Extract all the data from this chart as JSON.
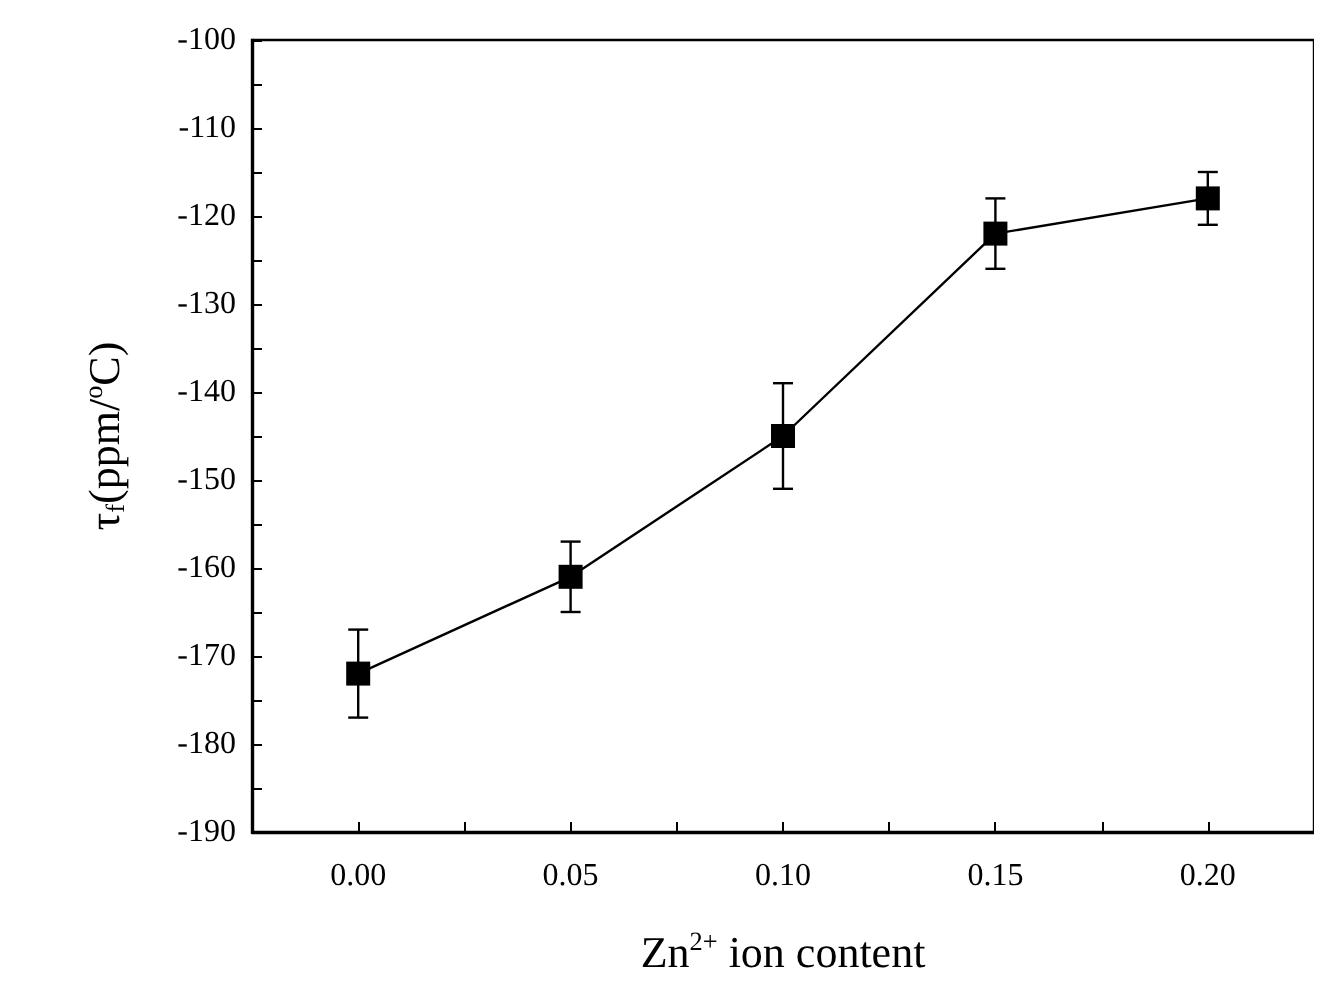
{
  "chart_data": {
    "type": "line",
    "xlabel": "Zn$^{2+}$ ion content",
    "ylabel": "τ$_{f}$(ppm/$^{o}$C)",
    "x": [
      0,
      0.05,
      0.1,
      0.15,
      0.2
    ],
    "series": [
      {
        "color": "#000000",
        "values": [
          -172,
          -161,
          -145,
          -122,
          -118
        ],
        "errors": [
          5,
          4,
          6,
          4,
          3
        ]
      }
    ],
    "xlim": [
      -0.025,
      0.225
    ],
    "xticks": [
      {
        "value": -0.025,
        "label": null
      },
      {
        "value": 0,
        "label": "0.00"
      },
      {
        "value": 0.025,
        "label": null
      },
      {
        "value": 0.05,
        "label": "0.05"
      },
      {
        "value": 0.075,
        "label": null
      },
      {
        "value": 0.1,
        "label": "0.10"
      },
      {
        "value": 0.125,
        "label": null
      },
      {
        "value": 0.15,
        "label": "0.15"
      },
      {
        "value": 0.175,
        "label": null
      },
      {
        "value": 0.2,
        "label": "0.20"
      }
    ],
    "ylim": [
      -190,
      -100
    ],
    "yticks": [
      -190,
      {
        "value": -185,
        "label": null
      },
      -180,
      {
        "value": -175,
        "label": null
      },
      -170,
      {
        "value": -165,
        "label": null
      },
      -160,
      {
        "value": -155,
        "label": null
      },
      -150,
      {
        "value": -145,
        "label": null
      },
      -140,
      {
        "value": -135,
        "label": null
      },
      -130,
      {
        "value": -125,
        "label": null
      },
      -120,
      {
        "value": -115,
        "label": null
      },
      -110,
      {
        "value": -105,
        "label": null
      },
      -100
    ],
    "marker": "square",
    "line_style": "solid",
    "grid": false
  }
}
